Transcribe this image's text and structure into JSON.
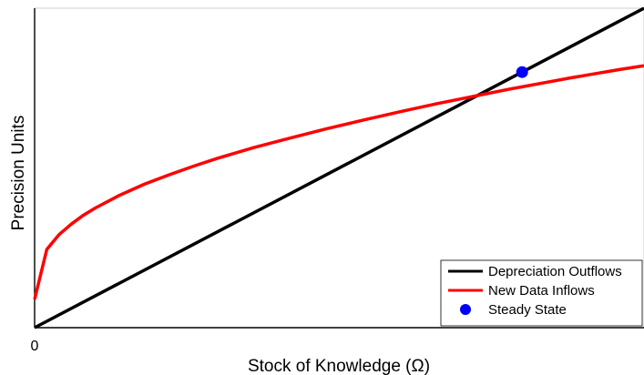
{
  "chart_data": {
    "type": "line",
    "title": "",
    "xlabel": "Stock of Knowledge (Ω)",
    "ylabel": "Precision Units",
    "x_ticks": [
      "0"
    ],
    "xlim": [
      0,
      100
    ],
    "ylim": [
      0,
      100
    ],
    "grid": false,
    "legend_position": "bottom-right",
    "series": [
      {
        "name": "Depreciation Outflows",
        "kind": "line",
        "color": "#000000",
        "x": [
          0,
          100
        ],
        "y": [
          0,
          100
        ]
      },
      {
        "name": "New Data Inflows",
        "kind": "line",
        "color": "#ff0000",
        "x": [
          0,
          2,
          4,
          6,
          8,
          10,
          14,
          18,
          22,
          26,
          30,
          36,
          42,
          48,
          54,
          60,
          66,
          72,
          78,
          80,
          84,
          88,
          92,
          96,
          100
        ],
        "y": [
          8.9,
          24.5,
          29.1,
          32.4,
          35.2,
          37.5,
          41.5,
          44.9,
          47.8,
          50.5,
          53.0,
          56.4,
          59.4,
          62.3,
          65.0,
          67.6,
          70.1,
          72.4,
          74.7,
          75.4,
          76.8,
          78.2,
          79.5,
          80.8,
          82.0
        ]
      },
      {
        "name": "Steady State",
        "kind": "marker",
        "color": "#0000ff",
        "x": [
          80
        ],
        "y": [
          80
        ]
      }
    ]
  }
}
